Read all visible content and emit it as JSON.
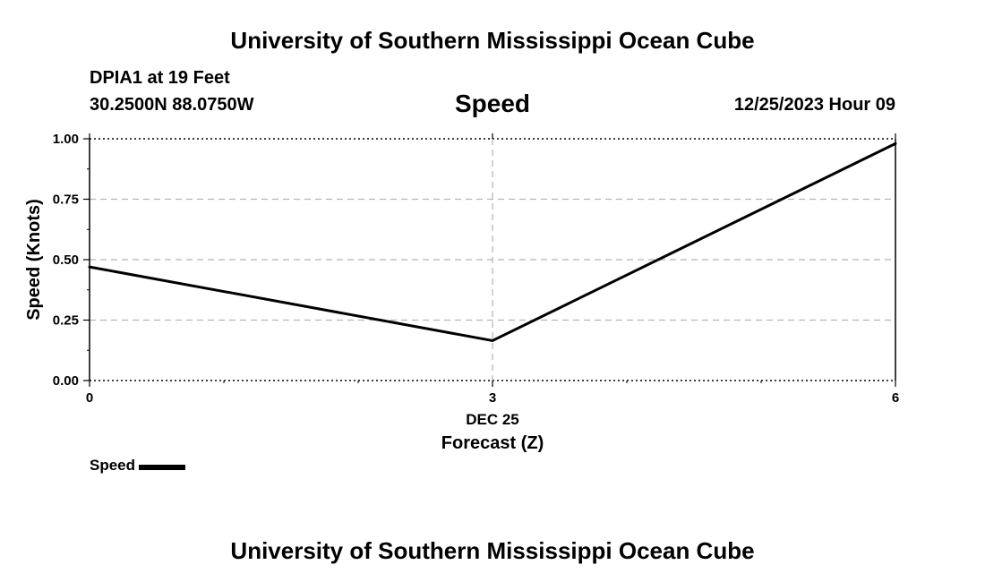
{
  "header": {
    "title": "University of Southern Mississippi Ocean Cube",
    "station": "DPIA1 at 19 Feet",
    "coords": "30.2500N  88.0750W",
    "chart_title": "Speed",
    "datetime": "12/25/2023 Hour 09"
  },
  "footer": {
    "title": "University of Southern Mississippi Ocean Cube"
  },
  "legend": {
    "label": "Speed"
  },
  "chart_data": {
    "type": "line",
    "title": "Speed",
    "xlabel": "Forecast (Z)",
    "ylabel": "Speed (Knots)",
    "x_date_label": "DEC 25",
    "x": [
      0,
      3,
      6
    ],
    "x_ticks": [
      "0",
      "3",
      "6"
    ],
    "y_ticks": [
      "0.00",
      "0.25",
      "0.50",
      "0.75",
      "1.00"
    ],
    "xlim": [
      0,
      6
    ],
    "ylim": [
      0,
      1.0
    ],
    "grid": true,
    "legend_position": "bottom-left",
    "series": [
      {
        "name": "Speed",
        "x": [
          0,
          3,
          6
        ],
        "values": [
          0.47,
          0.165,
          0.98
        ],
        "color": "#000000"
      }
    ]
  }
}
